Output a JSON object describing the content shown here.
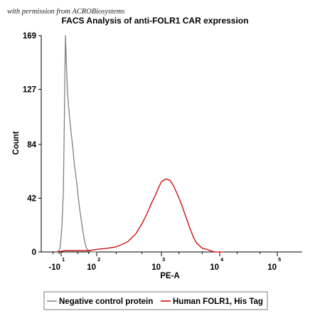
{
  "watermark": "with permission from ACROBiosystems",
  "chart_data": {
    "type": "line",
    "title": "FACS Analysis of anti-FOLR1 CAR expression",
    "xlabel": "PE-A",
    "ylabel": "Count",
    "xscale": "biexponential",
    "ylim": [
      0,
      169
    ],
    "yticks": [
      "0",
      "42",
      "84",
      "127",
      "169"
    ],
    "xticks": [
      {
        "base": "-10",
        "exp": "1"
      },
      {
        "base": "10",
        "exp": "2"
      },
      {
        "base": "10",
        "exp": "3"
      },
      {
        "base": "10",
        "exp": "4"
      },
      {
        "base": "10",
        "exp": "5"
      }
    ],
    "grid": false,
    "legend_position": "bottom",
    "series": [
      {
        "name": "Negative control protein",
        "color": "#808080",
        "x": [
          -30,
          -20,
          -15,
          -10,
          -8,
          -5,
          -3,
          -1,
          0,
          1,
          2,
          3,
          5,
          7,
          9,
          11,
          13,
          15,
          18,
          21,
          24,
          28,
          32,
          36,
          40,
          45,
          50,
          55,
          60,
          70,
          80,
          100
        ],
        "values": [
          0,
          1,
          4,
          12,
          22,
          45,
          90,
          145,
          169,
          160,
          150,
          140,
          125,
          115,
          108,
          95,
          82,
          68,
          55,
          42,
          32,
          22,
          14,
          8,
          4,
          2,
          1,
          1,
          0,
          0,
          0,
          0
        ]
      },
      {
        "name": "Human FOLR1, His Tag",
        "color": "#cc0000",
        "x": [
          -30,
          0,
          50,
          100,
          150,
          200,
          250,
          300,
          400,
          500,
          600,
          700,
          800,
          900,
          1000,
          1200,
          1400,
          1600,
          1800,
          2000,
          2300,
          2600,
          3000,
          3500,
          4000,
          5000,
          6000,
          7000,
          8000,
          10000,
          12000
        ],
        "values": [
          0,
          1,
          1,
          2,
          3,
          4,
          6,
          8,
          14,
          22,
          30,
          38,
          44,
          50,
          55,
          57,
          56,
          52,
          47,
          42,
          35,
          28,
          20,
          12,
          7,
          3,
          2,
          1,
          0,
          0,
          0
        ]
      }
    ]
  }
}
